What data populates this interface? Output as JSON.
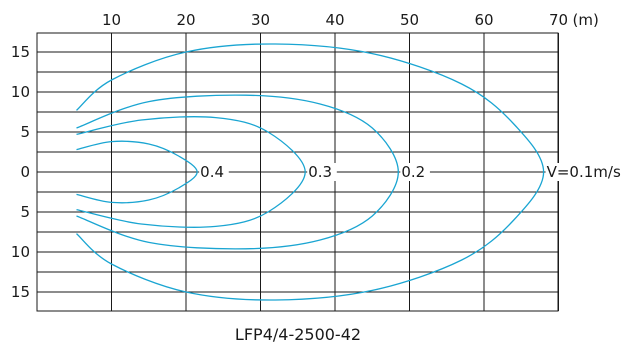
{
  "chart_data": {
    "type": "line",
    "caption": "LFP4/4-2500-42",
    "x_unit_label": "(m)",
    "x_ticks": [
      10,
      20,
      30,
      40,
      50,
      60,
      70
    ],
    "x_range": [
      0,
      72
    ],
    "y_tick_labels": [
      "15",
      "10",
      "5",
      "0",
      "5",
      "10",
      "15"
    ],
    "y_tick_values": [
      15,
      10,
      5,
      0,
      -5,
      -10,
      -15
    ],
    "y_range": [
      -17.5,
      17.5
    ],
    "grid": true,
    "series": [
      {
        "name": "V=0.1m/s",
        "label": "V=0.1m/s",
        "points": [
          [
            5.3,
            7.7
          ],
          [
            10,
            11.5
          ],
          [
            20,
            15
          ],
          [
            32,
            16
          ],
          [
            45,
            14.8
          ],
          [
            57,
            11
          ],
          [
            64,
            6
          ],
          [
            68,
            0
          ],
          [
            64,
            -6
          ],
          [
            57,
            -11
          ],
          [
            45,
            -14.8
          ],
          [
            32,
            -16
          ],
          [
            20,
            -15
          ],
          [
            10,
            -11.5
          ],
          [
            5.3,
            -7.7
          ]
        ]
      },
      {
        "name": "0.2",
        "label": "0.2",
        "points": [
          [
            5.3,
            5.5
          ],
          [
            15,
            8.8
          ],
          [
            28,
            9.6
          ],
          [
            38,
            8.5
          ],
          [
            45,
            5.5
          ],
          [
            48.5,
            0
          ],
          [
            45,
            -5.5
          ],
          [
            38,
            -8.5
          ],
          [
            28,
            -9.6
          ],
          [
            15,
            -8.8
          ],
          [
            5.3,
            -5.5
          ]
        ]
      },
      {
        "name": "0.3",
        "label": "0.3",
        "points": [
          [
            5.3,
            4.7
          ],
          [
            14,
            6.5
          ],
          [
            24,
            6.8
          ],
          [
            31,
            5
          ],
          [
            36,
            0
          ],
          [
            31,
            -5
          ],
          [
            24,
            -6.8
          ],
          [
            14,
            -6.5
          ],
          [
            5.3,
            -4.7
          ]
        ]
      },
      {
        "name": "0.4",
        "label": "0.4",
        "points": [
          [
            5.3,
            2.8
          ],
          [
            10,
            3.8
          ],
          [
            15,
            3.5
          ],
          [
            19,
            2
          ],
          [
            21.5,
            0
          ],
          [
            19,
            -2
          ],
          [
            15,
            -3.5
          ],
          [
            10,
            -3.8
          ],
          [
            5.3,
            -2.8
          ]
        ]
      }
    ]
  }
}
